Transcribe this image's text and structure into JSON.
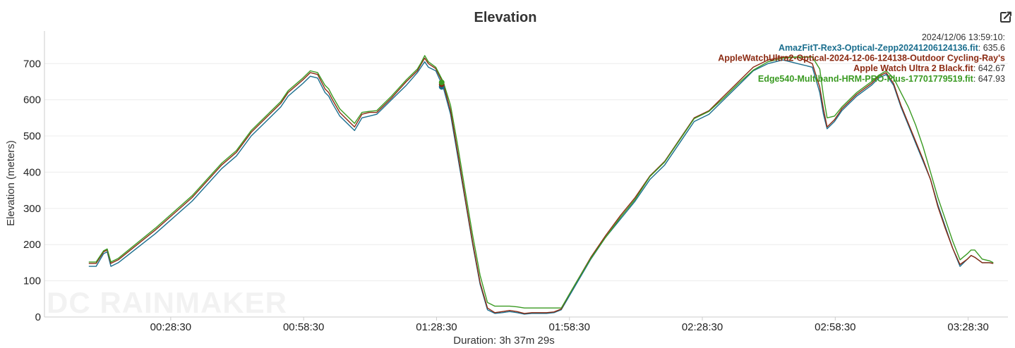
{
  "export_icon": "external-edit-icon",
  "watermark": "DC RAINMAKER",
  "tooltip": {
    "header": "2024/12/06 13:59:10:",
    "rows": [
      {
        "name": "AmazFitT-Rex3-Optical-Zepp20241206124136.fit",
        "value": "635.6",
        "color": "#1a6e8e"
      },
      {
        "name": "AppleWatchUltra2-Optical-2024-12-06-124138-Outdoor Cycling-Ray's",
        "value": "",
        "color": "#8b2a12"
      },
      {
        "name": "Apple Watch Ultra 2 Black.fit",
        "value": "642.67",
        "color": "#8b2a12"
      },
      {
        "name": "Edge540-Multiband-HRM-PRO-Plus-17701779519.fit",
        "value": "647.93",
        "color": "#3a9a22"
      }
    ]
  },
  "chart_data": {
    "type": "line",
    "title": "Elevation",
    "xlabel": "Duration: 3h 37m 29s",
    "ylabel": "Elevation (meters)",
    "xlim": [
      0,
      13049
    ],
    "ylim": [
      0,
      790
    ],
    "y_ticks": [
      0,
      100,
      200,
      300,
      400,
      500,
      600,
      700
    ],
    "x_ticks": [
      {
        "t": 1710,
        "label": "00:28:30"
      },
      {
        "t": 3510,
        "label": "00:58:30"
      },
      {
        "t": 5310,
        "label": "01:28:30"
      },
      {
        "t": 7110,
        "label": "01:58:30"
      },
      {
        "t": 8910,
        "label": "02:28:30"
      },
      {
        "t": 10710,
        "label": "02:58:30"
      },
      {
        "t": 12510,
        "label": "03:28:30"
      }
    ],
    "grid": true,
    "legend": "none",
    "series": [
      {
        "name": "AmazFitT-Rex3-Optical-Zepp20241206124136.fit",
        "color": "#1a6e8e",
        "x": [
          600,
          700,
          800,
          850,
          900,
          1000,
          1500,
          2000,
          2400,
          2600,
          2800,
          3000,
          3200,
          3300,
          3500,
          3600,
          3700,
          3800,
          3850,
          3900,
          4000,
          4200,
          4300,
          4400,
          4500,
          4700,
          4900,
          5050,
          5100,
          5150,
          5200,
          5300,
          5400,
          5500,
          5600,
          5700,
          5800,
          5900,
          6000,
          6100,
          6200,
          6300,
          6400,
          6500,
          6600,
          6700,
          6800,
          6900,
          7000,
          7100,
          7200,
          7400,
          7600,
          7800,
          8000,
          8200,
          8400,
          8600,
          8800,
          9000,
          9200,
          9400,
          9600,
          9800,
          10000,
          10200,
          10400,
          10500,
          10550,
          10600,
          10700,
          10800,
          10900,
          11000,
          11100,
          11200,
          11300,
          11400,
          11500,
          11600,
          11700,
          11800,
          11900,
          12000,
          12100,
          12200,
          12300,
          12400,
          12500,
          12550,
          12600,
          12700,
          12800,
          12850
        ],
        "y": [
          140,
          140,
          175,
          180,
          140,
          150,
          230,
          320,
          410,
          445,
          500,
          540,
          580,
          610,
          645,
          665,
          660,
          620,
          610,
          590,
          555,
          515,
          550,
          555,
          560,
          600,
          640,
          675,
          690,
          705,
          690,
          680,
          635,
          560,
          440,
          320,
          200,
          90,
          20,
          10,
          12,
          15,
          12,
          8,
          10,
          10,
          10,
          12,
          20,
          55,
          90,
          160,
          220,
          270,
          320,
          380,
          420,
          480,
          540,
          560,
          600,
          640,
          680,
          700,
          710,
          700,
          690,
          620,
          560,
          520,
          540,
          570,
          590,
          610,
          625,
          640,
          660,
          670,
          640,
          580,
          530,
          480,
          430,
          380,
          310,
          250,
          190,
          140,
          160,
          170,
          165,
          150,
          150,
          148
        ]
      },
      {
        "name": "Apple Watch Ultra 2 Black.fit",
        "color": "#8b2a12",
        "x": [
          600,
          700,
          800,
          850,
          900,
          1000,
          1500,
          2000,
          2400,
          2600,
          2800,
          3000,
          3200,
          3300,
          3500,
          3600,
          3700,
          3800,
          3850,
          3900,
          4000,
          4200,
          4300,
          4400,
          4500,
          4700,
          4900,
          5050,
          5100,
          5150,
          5200,
          5300,
          5400,
          5500,
          5600,
          5700,
          5800,
          5900,
          6000,
          6100,
          6200,
          6300,
          6400,
          6500,
          6600,
          6700,
          6800,
          6900,
          7000,
          7100,
          7200,
          7400,
          7600,
          7800,
          8000,
          8200,
          8400,
          8600,
          8800,
          9000,
          9200,
          9400,
          9600,
          9800,
          10000,
          10200,
          10400,
          10500,
          10550,
          10600,
          10700,
          10800,
          10900,
          11000,
          11100,
          11200,
          11300,
          11400,
          11500,
          11600,
          11700,
          11800,
          11900,
          12000,
          12100,
          12200,
          12300,
          12400,
          12500,
          12550,
          12600,
          12700,
          12800,
          12850
        ],
        "y": [
          148,
          148,
          180,
          185,
          148,
          158,
          240,
          330,
          420,
          455,
          510,
          550,
          590,
          620,
          655,
          675,
          670,
          630,
          620,
          600,
          565,
          525,
          560,
          565,
          565,
          605,
          650,
          680,
          698,
          715,
          700,
          686,
          645,
          570,
          450,
          325,
          205,
          95,
          25,
          12,
          15,
          18,
          15,
          10,
          12,
          12,
          12,
          14,
          22,
          60,
          95,
          165,
          225,
          280,
          330,
          390,
          430,
          490,
          550,
          570,
          610,
          650,
          690,
          710,
          718,
          718,
          700,
          635,
          575,
          525,
          545,
          575,
          595,
          615,
          630,
          645,
          665,
          675,
          645,
          585,
          535,
          485,
          435,
          380,
          305,
          245,
          190,
          145,
          160,
          170,
          165,
          150,
          150,
          148
        ]
      },
      {
        "name": "Edge540-Multiband-HRM-PRO-Plus-17701779519.fit",
        "color": "#3a9a22",
        "x": [
          600,
          700,
          800,
          850,
          900,
          1000,
          1500,
          2000,
          2400,
          2600,
          2800,
          3000,
          3200,
          3300,
          3500,
          3600,
          3700,
          3800,
          3850,
          3900,
          4000,
          4200,
          4300,
          4400,
          4500,
          4700,
          4900,
          5050,
          5100,
          5150,
          5200,
          5300,
          5400,
          5500,
          5600,
          5700,
          5800,
          5900,
          6000,
          6100,
          6200,
          6300,
          6400,
          6500,
          6600,
          6700,
          6800,
          6900,
          7000,
          7100,
          7200,
          7400,
          7600,
          7800,
          8000,
          8200,
          8400,
          8600,
          8800,
          9000,
          9200,
          9400,
          9600,
          9800,
          10000,
          10200,
          10400,
          10500,
          10550,
          10600,
          10700,
          10800,
          10900,
          11000,
          11100,
          11200,
          11300,
          11400,
          11500,
          11600,
          11700,
          11800,
          11900,
          12000,
          12100,
          12200,
          12300,
          12400,
          12500,
          12550,
          12600,
          12700,
          12800,
          12850
        ],
        "y": [
          152,
          152,
          183,
          188,
          152,
          162,
          245,
          335,
          425,
          460,
          515,
          555,
          595,
          625,
          660,
          680,
          675,
          640,
          630,
          610,
          575,
          535,
          565,
          568,
          570,
          610,
          655,
          685,
          702,
          722,
          705,
          690,
          650,
          585,
          470,
          345,
          225,
          115,
          40,
          30,
          30,
          30,
          28,
          25,
          25,
          25,
          25,
          25,
          25,
          60,
          95,
          162,
          220,
          275,
          325,
          388,
          428,
          488,
          548,
          568,
          605,
          645,
          682,
          705,
          715,
          718,
          718,
          685,
          610,
          550,
          555,
          580,
          600,
          620,
          635,
          650,
          668,
          680,
          660,
          620,
          580,
          530,
          470,
          400,
          330,
          270,
          210,
          158,
          175,
          185,
          185,
          160,
          155,
          150
        ]
      }
    ],
    "marker_time": 5380,
    "marker_values": [
      635.6,
      642.67,
      647.93
    ]
  }
}
